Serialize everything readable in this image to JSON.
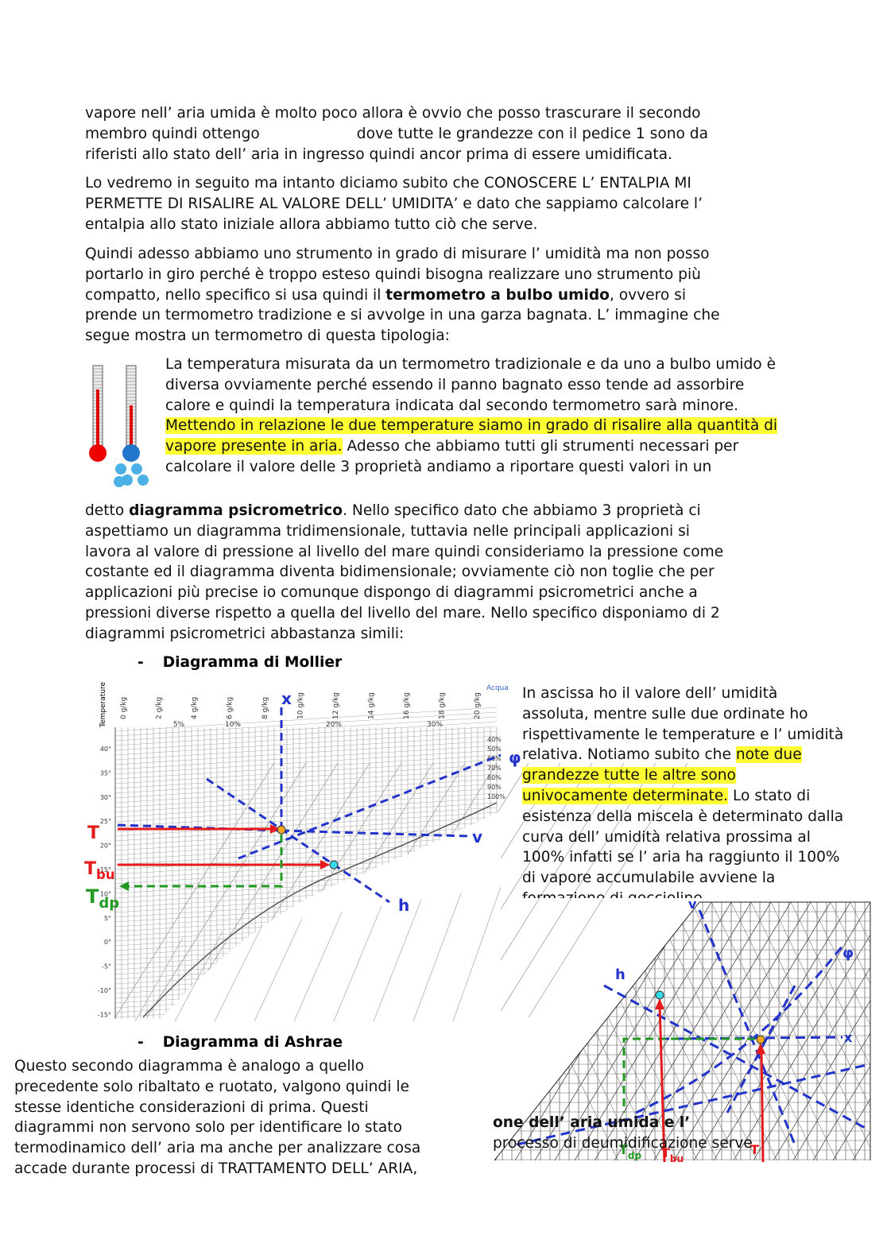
{
  "paragraphs": [
    {
      "lines": [
        [
          "vapore nell’ aria umida è molto poco allora è ovvio che posso trascurare il secondo"
        ],
        [
          "membro quindi ottengo",
          "dove tutte le grandezze con il pedice 1 sono da"
        ],
        [
          "riferisti allo stato dell’ aria in ingresso quindi ancor prima di essere umidificata."
        ]
      ]
    },
    {
      "lines": [
        [
          "Lo vedremo in seguito ma intanto diciamo subito che CONOSCERE L’ ENTALPIA MI"
        ],
        [
          "PERMETTE DI RISALIRE AL VALORE DELL’ UMIDITA’ e dato che sappiamo calcolare l’"
        ],
        [
          "entalpia allo stato iniziale allora abbiamo tutto ciò che serve."
        ]
      ]
    },
    {
      "lines": [
        [
          "Quindi adesso abbiamo uno strumento in grado di misurare l’ umidità ma non posso"
        ],
        [
          "portarlo in giro perché è troppo esteso quindi bisogna realizzare uno strumento più"
        ],
        [
          "compatto, nello specifico si usa quindi il ",
          {
            "bold": "termometro a bulbo umido"
          },
          ", ovvero si"
        ],
        [
          "prende un termometro tradizione e si avvolge in una garza bagnata. L’ immagine che"
        ],
        [
          "segue mostra un termometro di questa tipologia:"
        ]
      ]
    },
    {
      "lines": [
        [
          "La temperatura misurata da un termometro tradizionale e da uno a bulbo umido è"
        ],
        [
          "diversa ovviamente perché essendo il panno bagnato esso tende ad assorbire"
        ],
        [
          "calore e quindi la temperatura indicata dal secondo termometro sarà minore."
        ],
        [
          {
            "highlight": "Mettendo in relazione le due temperature siamo in grado di risalire alla quantità di"
          }
        ],
        [
          {
            "highlight": "vapore presente in aria."
          },
          "  Adesso che abbiamo tutti gli strumenti necessari per"
        ],
        [
          "calcolare il valore delle 3 proprietà andiamo a riportare questi valori in un"
        ]
      ]
    },
    {
      "lines": [
        [
          "detto ",
          {
            "bold": "diagramma psicrometrico"
          },
          ". Nello specifico dato che abbiamo 3 proprietà ci"
        ],
        [
          "aspettiamo un diagramma tridimensionale, tuttavia nelle principali applicazioni si"
        ],
        [
          "lavora al valore di pressione al livello del mare quindi consideriamo la pressione come"
        ],
        [
          "costante ed il diagramma diventa bidimensionale; ovviamente ciò non toglie che per"
        ],
        [
          "applicazioni più precise io comunque dispongo di diagrammi psicrometrici anche a"
        ],
        [
          "pressioni diverse rispetto a quella del livello del mare. Nello specifico disponiamo di 2"
        ],
        [
          "diagrammi psicrometrici abbastanza simili:"
        ]
      ]
    },
    {
      "lines": [
        [
          "In ascissa ho il valore dell’ umidità"
        ],
        [
          "assoluta, mentre sulle due ordinate ho"
        ],
        [
          "rispettivamente le temperature e l’ umidità"
        ],
        [
          "relativa. Notiamo subito che ",
          {
            "highlight": "note due"
          }
        ],
        [
          {
            "highlight": "grandezze tutte le altre sono"
          }
        ],
        [
          {
            "highlight": "univocamente determinate."
          },
          " Lo stato di"
        ],
        [
          "esistenza della miscela è determinato dalla"
        ],
        [
          "curva dell’ umidità relativa prossima al"
        ],
        [
          "100% infatti se l’ aria ha raggiunto il 100%"
        ],
        [
          "di vapore accumulabile avviene la"
        ],
        [
          "formazione di goccioline"
        ]
      ]
    },
    {
      "lines": [
        [
          "Questo secondo diagramma è analogo a quello"
        ],
        [
          "precedente solo ribaltato e ruotato, valgono quindi le"
        ],
        [
          "stesse identiche considerazioni di prima. Questi"
        ],
        [
          "diagrammi non servono solo per identificare lo stato"
        ],
        [
          "termodinamico dell’ aria ma anche  per analizzare cosa"
        ],
        [
          "accade durante processi di TRATTAMENTO DELL’ ARIA,"
        ]
      ]
    },
    {
      "lines": [
        [
          {
            "bold": "one dell’ aria umida e l’"
          }
        ],
        [
          "processo di deumidificazione serve"
        ]
      ]
    }
  ],
  "sections": [
    {
      "bullet": "-",
      "title": "Diagramma di Mollier"
    },
    {
      "bullet": "-",
      "title": "Diagramma di Ashrae"
    }
  ],
  "mollier": {
    "axis_title": "Temperature",
    "water_label": "Acqua",
    "humidity_ticks": [
      "0 g/kg",
      "2 g/kg",
      "4 g/kg",
      "6 g/kg",
      "8 g/kg",
      "10 g/kg",
      "12 g/kg",
      "14 g/kg",
      "16 g/kg",
      "18 g/kg",
      "20 g/kg"
    ],
    "relative_ticks": [
      "5%",
      "10%",
      "20%",
      "30%"
    ],
    "phi_ticks": [
      "40%",
      "50%",
      "60%",
      "70%",
      "80%",
      "90%",
      "100%"
    ],
    "temperature_ticks": [
      "40°",
      "35°",
      "30°",
      "25°",
      "20°",
      "15°",
      "10°",
      "5°",
      "0°",
      "-5°",
      "-10°",
      "-15°"
    ],
    "labels": {
      "x": "x",
      "v": "v",
      "h": "h",
      "phi": "φ",
      "T": {
        "main": "T"
      },
      "Tbu": {
        "main": "T",
        "sub": "bu"
      },
      "Tdp": {
        "main": "T",
        "sub": "dp"
      }
    }
  },
  "ashrae": {
    "labels": {
      "v": "v",
      "phi": "φ",
      "h": "h",
      "x": "x",
      "Tdp": {
        "main": "T",
        "sub": "dp"
      },
      "Tbu": {
        "main": "T",
        "sub": "bu"
      },
      "T": {
        "main": "T"
      }
    }
  }
}
